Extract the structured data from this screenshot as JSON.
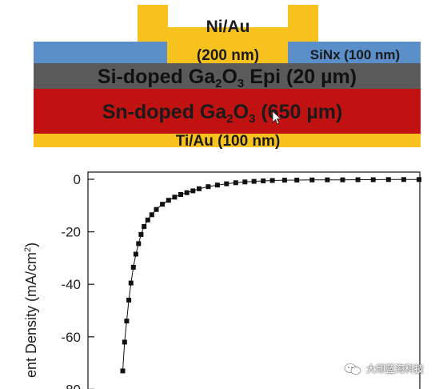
{
  "device": {
    "contact_top": "Ni/Au",
    "contact_thickness": "(200 nm)",
    "passivation": "SiNx (100 nm)",
    "epi_prefix": "Si-doped Ga",
    "epi_sub1": "2",
    "epi_mid": "O",
    "epi_sub2": "3",
    "epi_suffix": " Epi (20 µm)",
    "substrate_prefix": "Sn-doped Ga",
    "substrate_sub1": "2",
    "substrate_mid": "O",
    "substrate_sub2": "3",
    "substrate_suffix": " (650 µm)",
    "contact_bottom": "Ti/Au (100 nm)",
    "colors": {
      "metal": "#f7c21e",
      "sinx": "#5b8fc9",
      "epi": "#5a5a5a",
      "substrate": "#c11212"
    }
  },
  "chart_data": {
    "type": "scatter",
    "title": "",
    "ylabel_visible": "ent Density (mA/cm",
    "ylabel_sup": "2",
    "ylabel_close": ")",
    "yticks": [
      "0",
      "-20",
      "-40",
      "-60",
      "-80"
    ],
    "ylim": [
      -80,
      0
    ],
    "marker_color": "#111111",
    "series": [
      {
        "x": [
          0.03,
          0.036,
          0.043,
          0.05,
          0.057,
          0.065,
          0.073,
          0.082,
          0.09,
          0.1,
          0.112,
          0.125,
          0.14,
          0.16,
          0.18,
          0.2,
          0.22,
          0.24,
          0.26,
          0.28,
          0.31,
          0.34,
          0.37,
          0.4,
          0.43,
          0.46,
          0.49,
          0.52,
          0.56,
          0.6,
          0.65,
          0.7,
          0.75,
          0.8,
          0.85,
          0.9,
          0.95,
          1.0
        ],
        "y": [
          -73,
          -62,
          -54,
          -46,
          -39.5,
          -33.5,
          -28.5,
          -24.5,
          -21,
          -18,
          -15.5,
          -13.5,
          -11.5,
          -9.5,
          -8,
          -6.8,
          -5.8,
          -5.1,
          -4.4,
          -3.6,
          -2.8,
          -2.2,
          -1.7,
          -1.3,
          -1.0,
          -0.8,
          -0.6,
          -0.45,
          -0.35,
          -0.3,
          -0.25,
          -0.2,
          -0.2,
          -0.15,
          -0.15,
          -0.1,
          -0.1,
          -0.1
        ]
      }
    ]
  },
  "watermark": {
    "text": "大印蓝海科技",
    "icon": "wechat-icon"
  }
}
